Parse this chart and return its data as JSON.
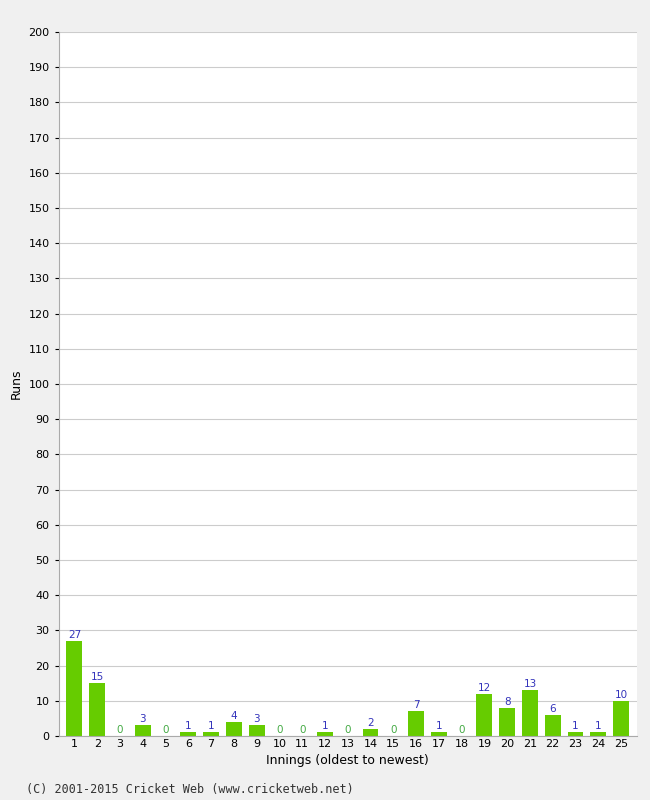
{
  "innings": [
    1,
    2,
    3,
    4,
    5,
    6,
    7,
    8,
    9,
    10,
    11,
    12,
    13,
    14,
    15,
    16,
    17,
    18,
    19,
    20,
    21,
    22,
    23,
    24,
    25
  ],
  "runs": [
    27,
    15,
    0,
    3,
    0,
    1,
    1,
    4,
    3,
    0,
    0,
    1,
    0,
    2,
    0,
    7,
    1,
    0,
    12,
    8,
    13,
    6,
    1,
    1,
    10
  ],
  "bar_color": "#66cc00",
  "label_color_most": "#3333bb",
  "label_color_zero": "#44aa44",
  "xlabel": "Innings (oldest to newest)",
  "ylabel": "Runs",
  "ylim": [
    0,
    200
  ],
  "yticks": [
    0,
    10,
    20,
    30,
    40,
    50,
    60,
    70,
    80,
    90,
    100,
    110,
    120,
    130,
    140,
    150,
    160,
    170,
    180,
    190,
    200
  ],
  "footer": "(C) 2001-2015 Cricket Web (www.cricketweb.net)",
  "background_color": "#f0f0f0",
  "plot_background_color": "#ffffff",
  "grid_color": "#cccccc",
  "label_fontsize": 7.5,
  "axis_fontsize": 8,
  "footer_fontsize": 8.5
}
